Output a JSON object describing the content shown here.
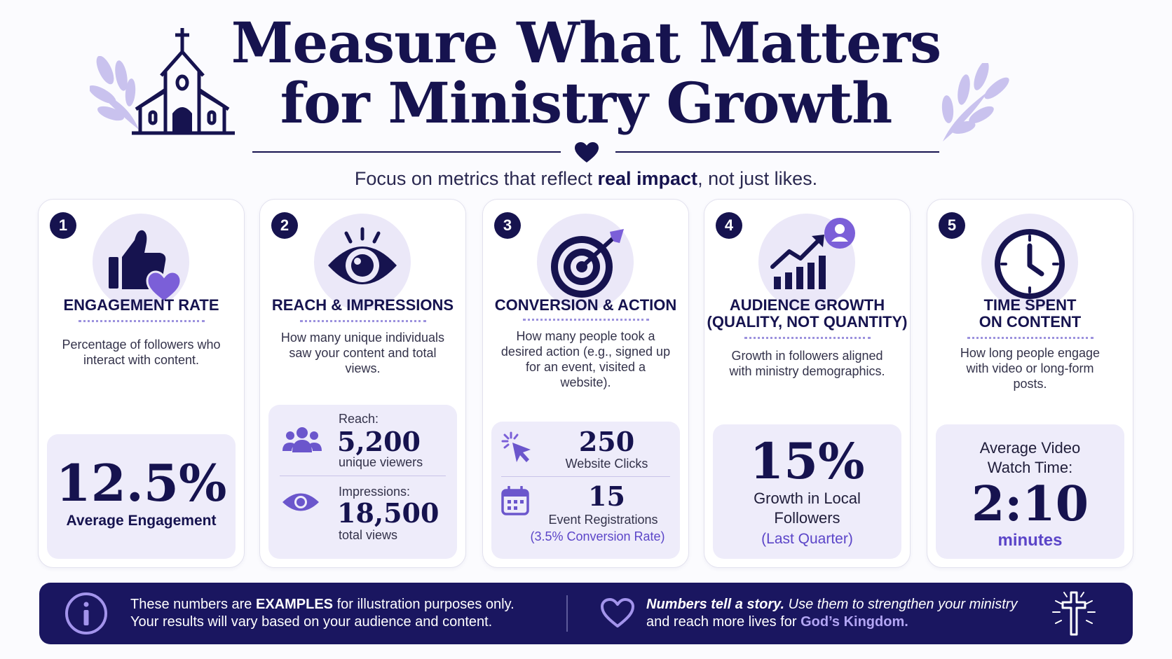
{
  "header": {
    "title_line1": "Measure What Matters",
    "title_line2": "for Ministry Growth",
    "subtitle_pre": "Focus on metrics that reflect ",
    "subtitle_bold": "real impact",
    "subtitle_post": ", not just likes."
  },
  "colors": {
    "navy": "#16134f",
    "accent": "#7b5fd8",
    "lavender": "#ebe8f8"
  },
  "cards": [
    {
      "number": "1",
      "icon": "thumbs-up-heart-icon",
      "title": "ENGAGEMENT RATE",
      "description": "Percentage of followers who interact with content.",
      "stat_value": "12.5%",
      "stat_label": "Average Engagement"
    },
    {
      "number": "2",
      "icon": "eye-icon",
      "title": "REACH & IMPRESSIONS",
      "description": "How many unique individuals saw your content and total views.",
      "reach_label": "Reach:",
      "reach_value": "5,200",
      "reach_unit": "unique viewers",
      "impressions_label": "Impressions:",
      "impressions_value": "18,500",
      "impressions_unit": "total views"
    },
    {
      "number": "3",
      "icon": "target-icon",
      "title": "CONVERSION & ACTION",
      "description": "How many people took a desired action (e.g., signed up for an event, visited a website).",
      "clicks_value": "250",
      "clicks_label": "Website Clicks",
      "reg_value": "15",
      "reg_label": "Event Registrations",
      "conversion_rate": "(3.5% Conversion Rate)"
    },
    {
      "number": "4",
      "icon": "growth-chart-icon",
      "title_line1": "AUDIENCE GROWTH",
      "title_line2": "(QUALITY, NOT QUANTITY)",
      "description": "Growth in followers aligned with ministry demographics.",
      "stat_value": "15%",
      "stat_label": "Growth in Local Followers",
      "stat_note": "(Last Quarter)"
    },
    {
      "number": "5",
      "icon": "clock-icon",
      "title_line1": "TIME SPENT",
      "title_line2": "ON CONTENT",
      "description": "How long people engage with video or long-form posts.",
      "stat_label": "Average Video Watch Time:",
      "stat_value": "2:10",
      "stat_unit": "minutes"
    }
  ],
  "footer": {
    "left_pre": "These numbers are ",
    "left_bold": "EXAMPLES",
    "left_post": " for illustration purposes only.",
    "left_line2": "Your results will vary based on your audience and content.",
    "right_italic_bold": "Numbers tell a story.",
    "right_italic": " Use them to strengthen your ministry",
    "right_line2_pre": "and reach more lives for ",
    "right_highlight": "God’s Kingdom."
  }
}
